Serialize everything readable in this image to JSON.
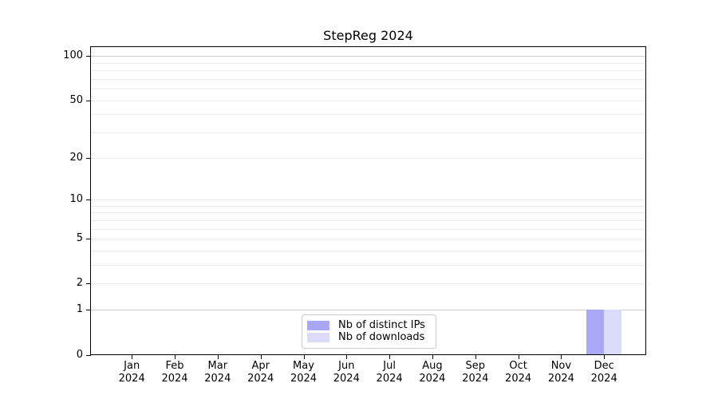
{
  "page": {
    "background": "#ffffff"
  },
  "chart_data": {
    "type": "bar",
    "title": "StepReg 2024",
    "xlabel": "",
    "ylabel": "",
    "x_categories": [
      {
        "month": "Jan",
        "year": "2024"
      },
      {
        "month": "Feb",
        "year": "2024"
      },
      {
        "month": "Mar",
        "year": "2024"
      },
      {
        "month": "Apr",
        "year": "2024"
      },
      {
        "month": "May",
        "year": "2024"
      },
      {
        "month": "Jun",
        "year": "2024"
      },
      {
        "month": "Jul",
        "year": "2024"
      },
      {
        "month": "Aug",
        "year": "2024"
      },
      {
        "month": "Sep",
        "year": "2024"
      },
      {
        "month": "Oct",
        "year": "2024"
      },
      {
        "month": "Nov",
        "year": "2024"
      },
      {
        "month": "Dec",
        "year": "2024"
      }
    ],
    "series": [
      {
        "name": "Nb of distinct IPs",
        "color": "#a8a8f6",
        "values": [
          0,
          0,
          0,
          0,
          0,
          0,
          0,
          0,
          0,
          0,
          0,
          1
        ]
      },
      {
        "name": "Nb of downloads",
        "color": "#dbdbfa",
        "values": [
          0,
          0,
          0,
          0,
          0,
          0,
          0,
          0,
          0,
          0,
          0,
          1
        ]
      }
    ],
    "yscale": "log1p",
    "ylim": [
      0,
      115
    ],
    "yticks": [
      100,
      50,
      20,
      10,
      5,
      2,
      1,
      0
    ],
    "gridlines": {
      "minor": [
        2,
        3,
        4,
        5,
        6,
        7,
        8,
        9,
        10,
        20,
        30,
        40,
        50,
        60,
        70,
        80,
        90
      ],
      "emphasized": [
        1,
        100
      ]
    },
    "grid": "horizontal",
    "legend": {
      "position": "lower center"
    },
    "colors": {
      "spine": "#000000",
      "grid_minor": "#ededed",
      "grid_emphasized": "#cdcdcd",
      "legend_border": "#cccccc",
      "text": "#000000"
    }
  }
}
